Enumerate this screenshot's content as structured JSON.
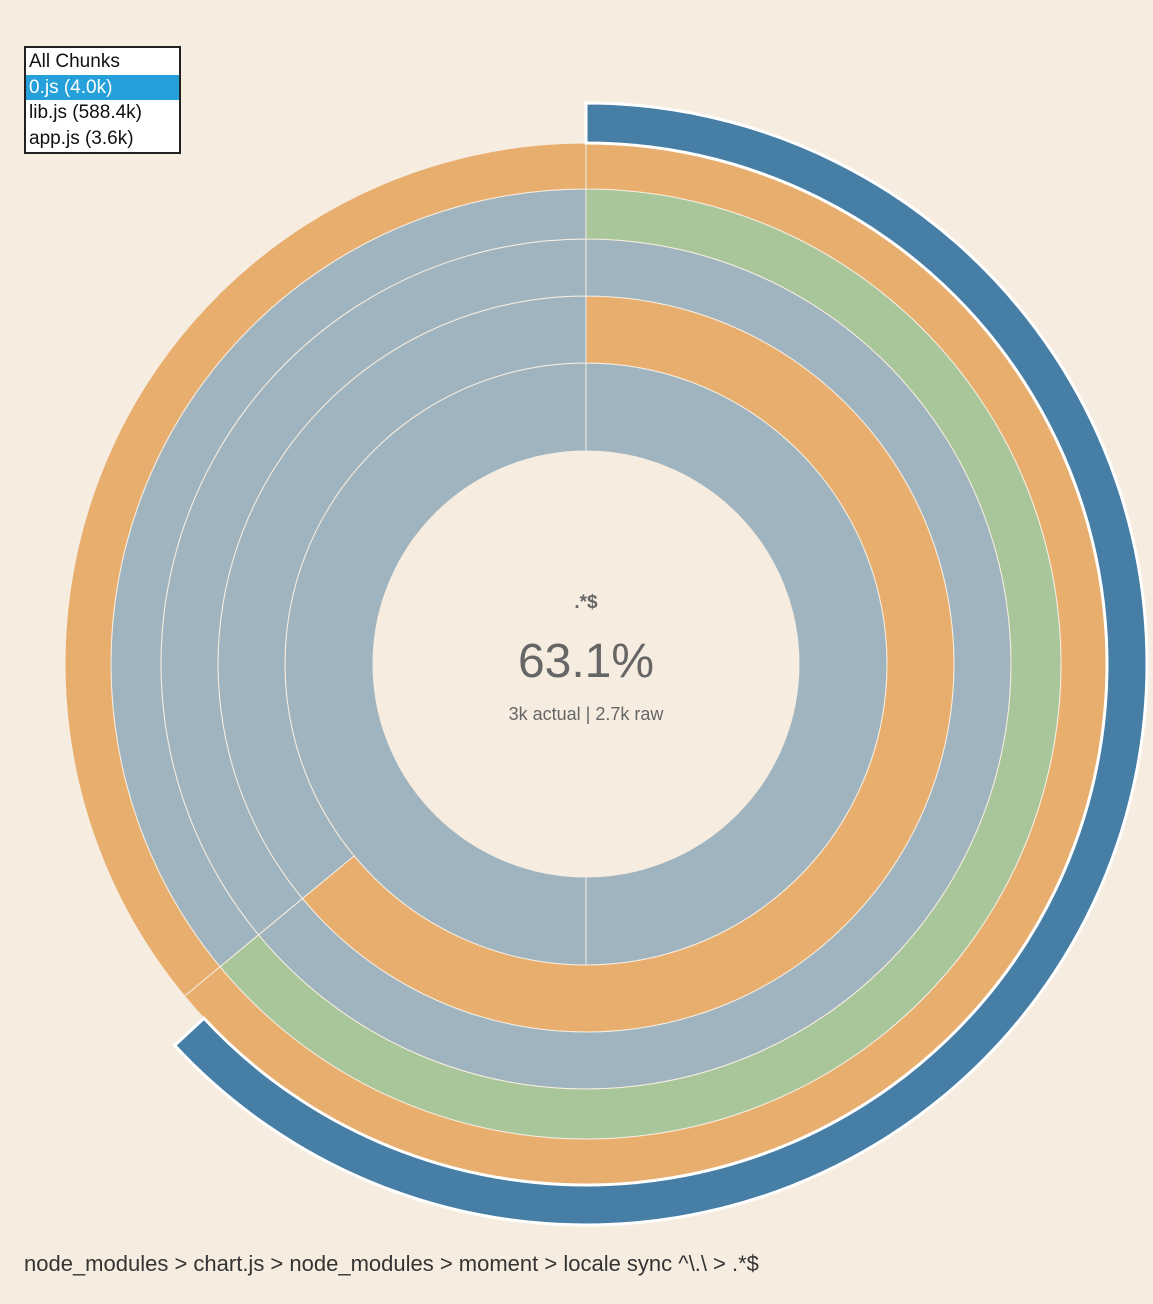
{
  "chunk_selector": {
    "options": [
      "All Chunks",
      "0.js (4.0k)",
      "lib.js (588.4k)",
      "app.js (3.6k)"
    ],
    "selected_index": 1
  },
  "chart_data": {
    "type": "sunburst",
    "title": "",
    "rings": [
      {
        "depth": 1,
        "segments": [
          {
            "start_pct": 0,
            "end_pct": 100,
            "color": "#a0b4bf"
          }
        ]
      },
      {
        "depth": 2,
        "segments": [
          {
            "start_pct": 0,
            "end_pct": 64,
            "color": "#e8ae6e"
          },
          {
            "start_pct": 64,
            "end_pct": 100,
            "color": "#a0b4bf"
          }
        ]
      },
      {
        "depth": 3,
        "segments": [
          {
            "start_pct": 0,
            "end_pct": 64,
            "color": "#a0b4bf"
          },
          {
            "start_pct": 64,
            "end_pct": 100,
            "color": "#a0b4bf"
          }
        ]
      },
      {
        "depth": 4,
        "segments": [
          {
            "start_pct": 0,
            "end_pct": 64,
            "color": "#a8c69a"
          },
          {
            "start_pct": 64,
            "end_pct": 100,
            "color": "#a0b4bf"
          }
        ]
      },
      {
        "depth": 5,
        "segments": [
          {
            "start_pct": 0,
            "end_pct": 64,
            "color": "#e8ae6e"
          },
          {
            "start_pct": 64,
            "end_pct": 100,
            "color": "#e8ae6e"
          }
        ]
      },
      {
        "depth": 6,
        "segments": [
          {
            "start_pct": 0,
            "end_pct": 63.1,
            "color": "#467ea5",
            "highlighted": true
          }
        ]
      }
    ],
    "center": {
      "name": ".*$",
      "percent": "63.1%",
      "sizes": "3k actual | 2.7k raw"
    }
  },
  "breadcrumb": "node_modules > chart.js > node_modules > moment > locale sync ^\\.\\ > .*$"
}
